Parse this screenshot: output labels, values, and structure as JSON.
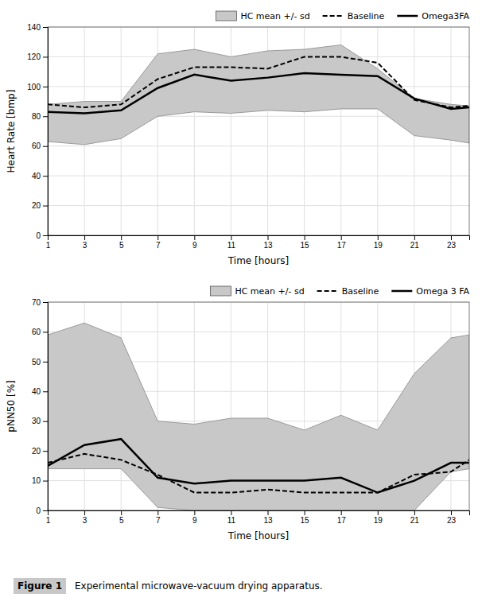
{
  "chart_data": [
    {
      "type": "line",
      "x": [
        1,
        3,
        5,
        7,
        9,
        11,
        13,
        15,
        17,
        19,
        21,
        23,
        24
      ],
      "xlim": [
        1,
        24
      ],
      "xticks": [
        1,
        3,
        5,
        7,
        9,
        11,
        13,
        15,
        17,
        19,
        21,
        23
      ],
      "ylim": [
        0,
        140
      ],
      "yticks": [
        0,
        20,
        40,
        60,
        80,
        100,
        120,
        140
      ],
      "xlabel": "Time [hours]",
      "ylabel": "Heart Rate [bmp]",
      "grid": true,
      "legend": "upper right",
      "series": [
        {
          "name": "HC mean +/- sd",
          "type": "band",
          "color": "#c8c8c8",
          "lower": [
            63,
            61,
            65,
            80,
            83,
            82,
            84,
            83,
            85,
            85,
            67,
            64,
            62
          ],
          "upper": [
            88,
            90,
            90,
            122,
            125,
            120,
            124,
            125,
            128,
            112,
            92,
            88,
            87
          ]
        },
        {
          "name": "Baseline",
          "color": "#000000",
          "line_style": "dashed",
          "values": [
            88,
            86,
            88,
            105,
            113,
            113,
            112,
            120,
            120,
            116,
            91,
            86,
            87
          ]
        },
        {
          "name": "Omega3FA",
          "color": "#000000",
          "line_style": "solid",
          "values": [
            83,
            82,
            84,
            99,
            108,
            104,
            106,
            109,
            108,
            107,
            92,
            85,
            86
          ]
        }
      ]
    },
    {
      "type": "line",
      "x": [
        1,
        3,
        5,
        7,
        9,
        11,
        13,
        15,
        17,
        19,
        21,
        23,
        24
      ],
      "xlim": [
        1,
        24
      ],
      "xticks": [
        1,
        3,
        5,
        7,
        9,
        11,
        13,
        15,
        17,
        19,
        21,
        23
      ],
      "ylim": [
        0,
        70
      ],
      "yticks": [
        0,
        10,
        20,
        30,
        40,
        50,
        60,
        70
      ],
      "xlabel": "Time [hours]",
      "ylabel": "pNN50 [%]",
      "grid": true,
      "legend": "upper right",
      "series": [
        {
          "name": "HC mean +/- sd",
          "type": "band",
          "color": "#c8c8c8",
          "lower": [
            14,
            14,
            14,
            1,
            0,
            0,
            0,
            0,
            0,
            0,
            0,
            13,
            14
          ],
          "upper": [
            59,
            63,
            58,
            30,
            29,
            31,
            31,
            27,
            32,
            27,
            46,
            58,
            59
          ]
        },
        {
          "name": "Baseline",
          "color": "#000000",
          "line_style": "dashed",
          "values": [
            16,
            19,
            17,
            12,
            6,
            6,
            7,
            6,
            6,
            6,
            12,
            13,
            17
          ]
        },
        {
          "name": "Omega 3 FA",
          "color": "#000000",
          "line_style": "solid",
          "values": [
            15,
            22,
            24,
            11,
            9,
            10,
            10,
            10,
            11,
            6,
            10,
            16,
            16
          ]
        }
      ],
      "annotations": [
        "Figure 1",
        "Experimental microwave-vacuum drying apparatus."
      ]
    }
  ]
}
